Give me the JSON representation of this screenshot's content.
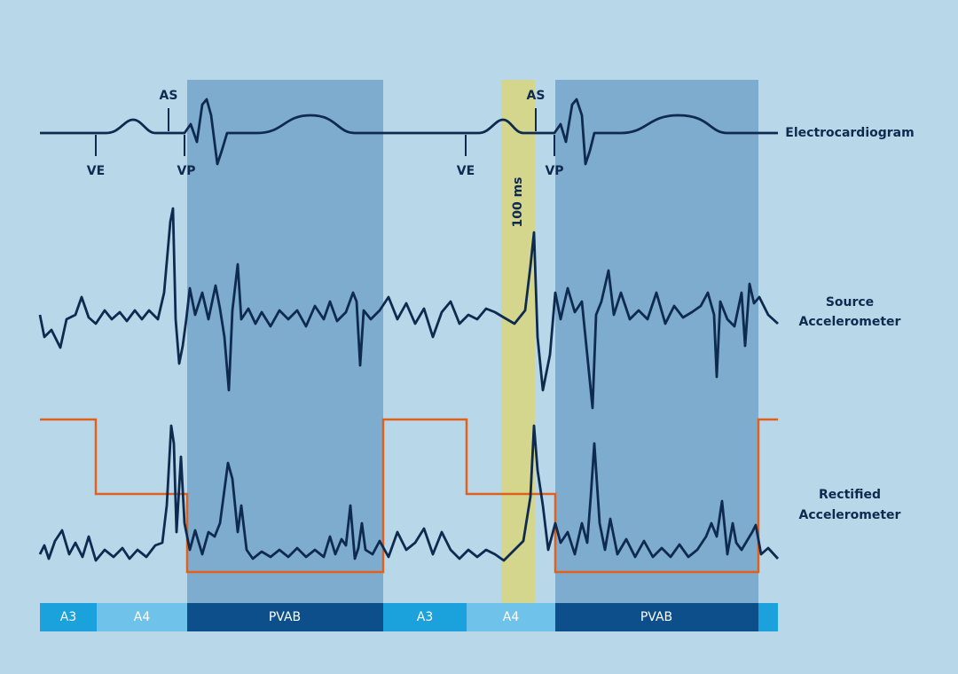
{
  "ecg_markers": [
    {
      "label": "VE"
    },
    {
      "label": "AS"
    },
    {
      "label": "VP"
    },
    {
      "label": "VE"
    },
    {
      "label": "AS"
    },
    {
      "label": "VP"
    }
  ],
  "window_label": "100 ms",
  "traces": [
    {
      "lines": [
        "Electrocardiogram"
      ]
    },
    {
      "lines": [
        "Source",
        "Accelerometer"
      ]
    },
    {
      "lines": [
        "Rectified",
        "Accelerometer"
      ]
    }
  ],
  "segments": [
    "A3",
    "A4",
    "PVAB",
    "A3",
    "A4",
    "PVAB"
  ]
}
